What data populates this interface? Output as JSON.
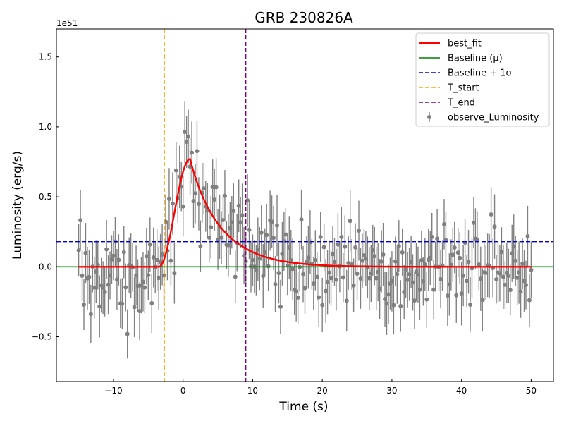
{
  "chart_data": {
    "type": "line",
    "title": "GRB 230826A",
    "xlabel": "Time (s)",
    "ylabel": "Luminosity (erg/s)",
    "y_offset_label": "1e51",
    "xlim": [
      -18.2,
      53.2
    ],
    "ylim": [
      -0.82,
      1.7
    ],
    "x_ticks": [
      -10,
      0,
      10,
      20,
      30,
      40,
      50
    ],
    "x_tick_labels": [
      "−10",
      "0",
      "10",
      "20",
      "30",
      "40",
      "50"
    ],
    "y_ticks": [
      -0.5,
      0.0,
      0.5,
      1.0,
      1.5
    ],
    "y_tick_labels": [
      "−0.5",
      "0.0",
      "0.5",
      "1.0",
      "1.5"
    ],
    "legend_position": "top-right",
    "series": [
      {
        "name": "best_fit",
        "kind": "line",
        "color": "#ff0000",
        "model": {
          "t_rise": -3.5,
          "peak_time": 1.0,
          "peak_value": 0.77,
          "decay_tau": 4.0
        }
      },
      {
        "name": "Baseline (μ)",
        "kind": "hline",
        "color": "#008000",
        "value": 0.0
      },
      {
        "name": "Baseline + 1σ",
        "kind": "hline",
        "color": "#0000cc",
        "style": "dashed",
        "value": 0.18
      },
      {
        "name": "T_start",
        "kind": "vline",
        "color": "#ffa500",
        "style": "dashed",
        "value": -2.7
      },
      {
        "name": "T_end",
        "kind": "vline",
        "color": "#800080",
        "style": "dashed",
        "value": 9.0
      },
      {
        "name": "observe_Luminosity",
        "kind": "errorbar",
        "color": "#808080",
        "x_range": [
          -15,
          50
        ],
        "step": 0.25,
        "noise_sigma": 0.15,
        "err": 0.2,
        "seed": 230826
      }
    ]
  }
}
